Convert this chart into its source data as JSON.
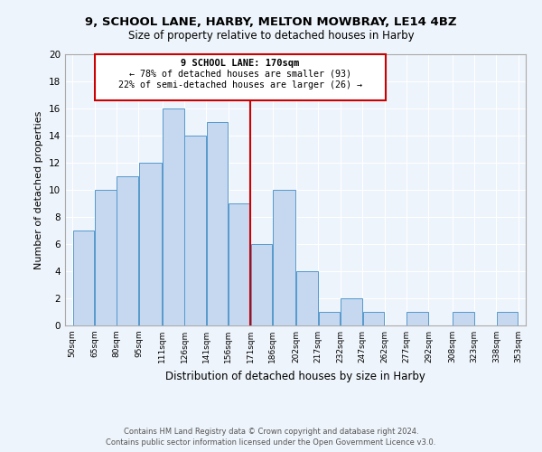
{
  "title1": "9, SCHOOL LANE, HARBY, MELTON MOWBRAY, LE14 4BZ",
  "title2": "Size of property relative to detached houses in Harby",
  "xlabel": "Distribution of detached houses by size in Harby",
  "ylabel": "Number of detached properties",
  "footer1": "Contains HM Land Registry data © Crown copyright and database right 2024.",
  "footer2": "Contains public sector information licensed under the Open Government Licence v3.0.",
  "annotation_title": "9 SCHOOL LANE: 170sqm",
  "annotation_line1": "← 78% of detached houses are smaller (93)",
  "annotation_line2": "22% of semi-detached houses are larger (26) →",
  "bar_edges": [
    50,
    65,
    80,
    95,
    111,
    126,
    141,
    156,
    171,
    186,
    202,
    217,
    232,
    247,
    262,
    277,
    292,
    308,
    323,
    338,
    353
  ],
  "bar_heights": [
    7,
    10,
    11,
    12,
    16,
    14,
    15,
    9,
    6,
    10,
    4,
    1,
    2,
    1,
    0,
    1,
    0,
    1,
    0,
    1
  ],
  "bar_color": "#c5d8f0",
  "bar_edge_color": "#5599cc",
  "vline_color": "#cc0000",
  "vline_x": 171,
  "box_color": "#cc0000",
  "bg_color": "#eef4fb",
  "tick_labels": [
    "50sqm",
    "65sqm",
    "80sqm",
    "95sqm",
    "111sqm",
    "126sqm",
    "141sqm",
    "156sqm",
    "171sqm",
    "186sqm",
    "202sqm",
    "217sqm",
    "232sqm",
    "247sqm",
    "262sqm",
    "277sqm",
    "292sqm",
    "308sqm",
    "323sqm",
    "338sqm",
    "353sqm"
  ],
  "ylim": [
    0,
    20
  ],
  "yticks": [
    0,
    2,
    4,
    6,
    8,
    10,
    12,
    14,
    16,
    18,
    20
  ]
}
